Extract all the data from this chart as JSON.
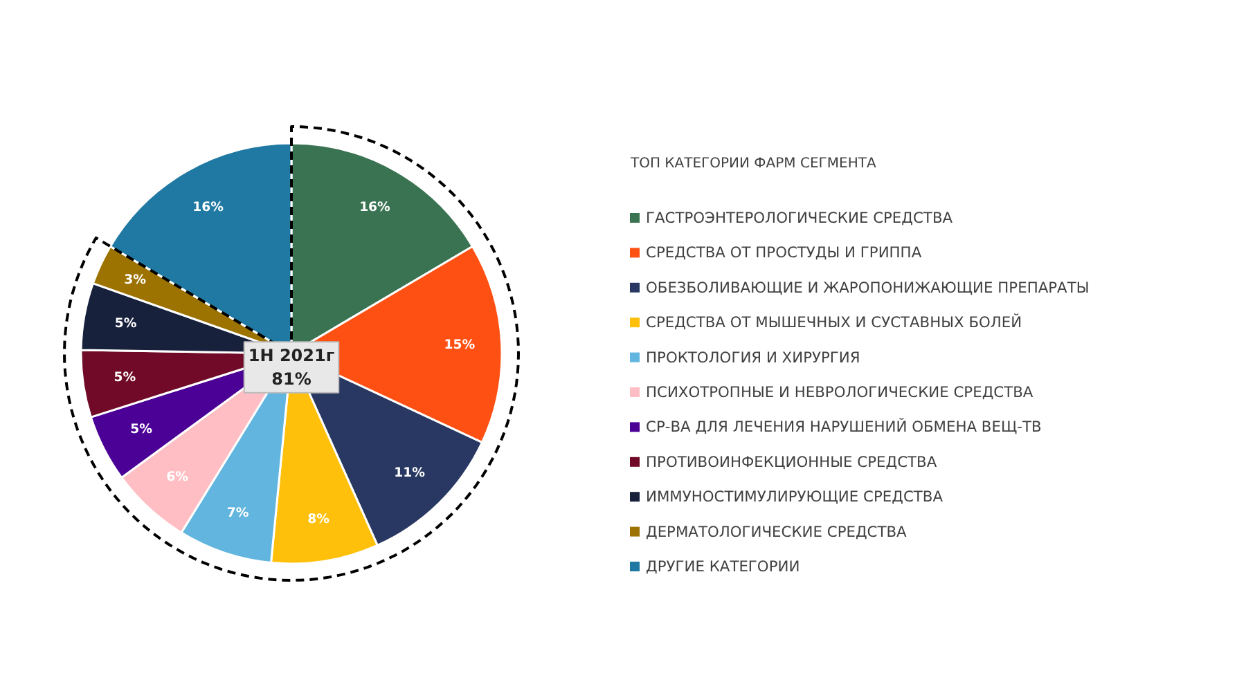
{
  "chart_data": {
    "type": "pie",
    "legend_title": "ТОП КАТЕГОРИИ ФАРМ СЕГМЕНТА",
    "categories": [
      "ГАСТРОЭНТЕРОЛОГИЧЕСКИЕ СРЕДСТВА",
      "СРЕДСТВА ОТ ПРОСТУДЫ И ГРИППА",
      "ОБЕЗБОЛИВАЮЩИЕ И ЖАРОПОНИЖАЮЩИЕ ПРЕПАРАТЫ",
      "СРЕДСТВА ОТ МЫШЕЧНЫХ И СУСТАВНЫХ БОЛЕЙ",
      "ПРОКТОЛОГИЯ И ХИРУРГИЯ",
      "ПСИХОТРОПНЫЕ И НЕВРОЛОГИЧЕСКИЕ СРЕДСТВА",
      "СР-ВА ДЛЯ ЛЕЧЕНИЯ НАРУШЕНИЙ ОБМЕНА ВЕЩ-ТВ",
      "ПРОТИВОИНФЕКЦИОННЫЕ СРЕДСТВА",
      "ИММУНОСТИМУЛИРУЮЩИЕ СРЕДСТВА",
      "ДЕРМАТОЛОГИЧЕСКИЕ СРЕДСТВА",
      "ДРУГИЕ КАТЕГОРИИ"
    ],
    "values": [
      16,
      15,
      11,
      8,
      7,
      6,
      5,
      5,
      5,
      3,
      16
    ],
    "colors": [
      "#3a7352",
      "#ff5014",
      "#283862",
      "#ffc00c",
      "#62b5de",
      "#ffbec4",
      "#4b0096",
      "#700a28",
      "#18213c",
      "#9c7200",
      "#2079a3"
    ],
    "value_labels": [
      "16%",
      "15%",
      "11%",
      "8%",
      "7%",
      "6%",
      "5%",
      "5%",
      "5%",
      "3%",
      "16%"
    ],
    "annotations": [
      "1H 2021г\n81%"
    ],
    "legend": "right"
  }
}
